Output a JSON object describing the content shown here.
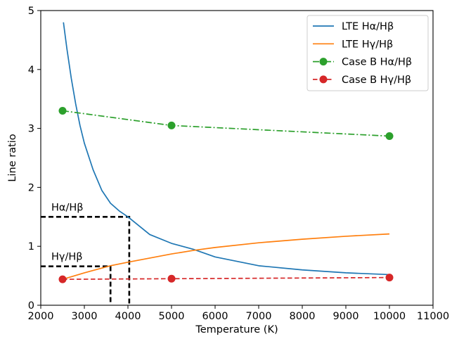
{
  "chart_data": {
    "type": "line",
    "xlabel": "Temperature (K)",
    "ylabel": "Line ratio",
    "xlim": [
      2000,
      11000
    ],
    "ylim": [
      0,
      5
    ],
    "x_ticks": [
      "2000",
      "3000",
      "4000",
      "5000",
      "6000",
      "7000",
      "8000",
      "9000",
      "10000",
      "11000"
    ],
    "y_ticks": [
      "0",
      "1",
      "2",
      "3",
      "4",
      "5"
    ],
    "grid": false,
    "legend_position": "top-right",
    "series": [
      {
        "name": "LTE Hα/Hβ",
        "color": "#1f77b4",
        "style": "solid",
        "marker": "none",
        "x": [
          2520,
          2600,
          2700,
          2800,
          2900,
          3000,
          3200,
          3400,
          3600,
          3800,
          4000,
          4500,
          5000,
          5500,
          6000,
          7000,
          8000,
          9000,
          10000
        ],
        "y": [
          4.8,
          4.35,
          3.85,
          3.42,
          3.05,
          2.75,
          2.3,
          1.95,
          1.73,
          1.6,
          1.5,
          1.2,
          1.05,
          0.95,
          0.82,
          0.67,
          0.6,
          0.55,
          0.52
        ]
      },
      {
        "name": "LTE Hγ/Hβ",
        "color": "#ff7f0e",
        "style": "solid",
        "marker": "none",
        "x": [
          2500,
          3000,
          3600,
          4000,
          4500,
          5000,
          5500,
          6000,
          7000,
          8000,
          9000,
          10000
        ],
        "y": [
          0.44,
          0.55,
          0.67,
          0.73,
          0.8,
          0.87,
          0.93,
          0.98,
          1.06,
          1.12,
          1.17,
          1.21
        ]
      },
      {
        "name": "Case B Hα/Hβ",
        "color": "#2ca02c",
        "style": "dashdot",
        "marker": "circle",
        "x": [
          2500,
          5000,
          10000
        ],
        "y": [
          3.3,
          3.05,
          2.87
        ]
      },
      {
        "name": "Case B Hγ/Hβ",
        "color": "#d62728",
        "style": "dashed",
        "marker": "circle",
        "x": [
          2500,
          5000,
          10000
        ],
        "y": [
          0.44,
          0.45,
          0.47
        ]
      }
    ],
    "annotations": [
      {
        "label": "Hα/Hβ",
        "x": 4030,
        "y": 1.5
      },
      {
        "label": "Hγ/Hβ",
        "x": 3600,
        "y": 0.66
      }
    ]
  }
}
